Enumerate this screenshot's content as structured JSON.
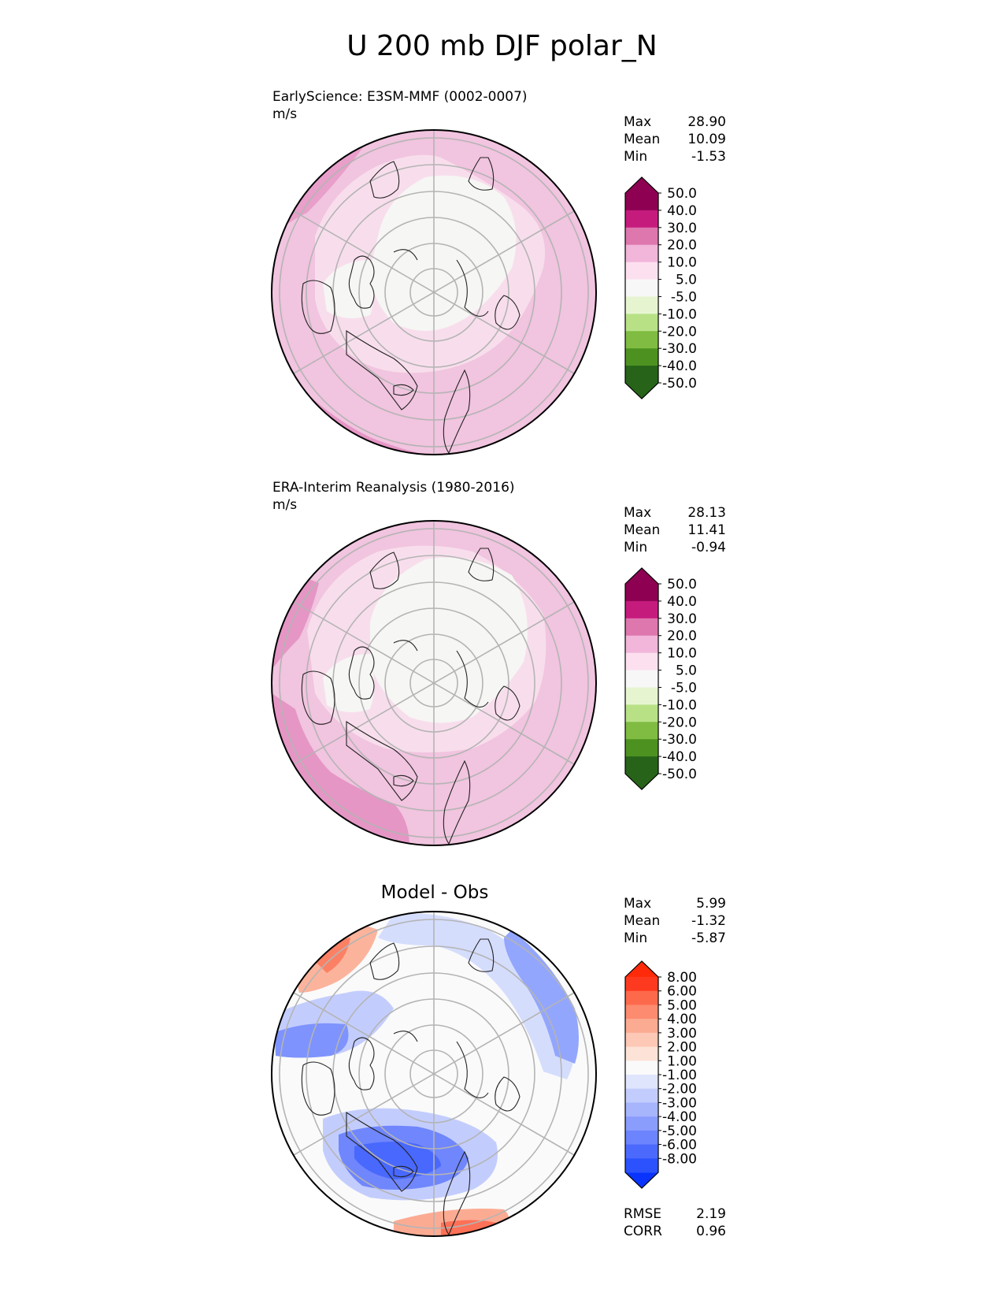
{
  "title": "U 200 mb DJF polar_N",
  "panels": [
    {
      "id": "model",
      "title": "EarlyScience: E3SM-MMF (0002-0007)",
      "units": "m/s",
      "stats": [
        {
          "label": "Max",
          "value": "28.90"
        },
        {
          "label": "Mean",
          "value": "10.09"
        },
        {
          "label": "Min",
          "value": "-1.53"
        }
      ],
      "colorbar": {
        "labels": [
          "50.0",
          "40.0",
          "30.0",
          "20.0",
          "10.0",
          "5.0",
          "-5.0",
          "-10.0",
          "-20.0",
          "-30.0",
          "-40.0",
          "-50.0"
        ],
        "colors": [
          "#8e0152",
          "#c51b7d",
          "#de77ae",
          "#f1b6da",
          "#fde0ef",
          "#f7f7f7",
          "#e6f5d0",
          "#b8e186",
          "#7fbc41",
          "#4d9221",
          "#276419"
        ],
        "top_color": "#8e0152",
        "bottom_color": "#276419"
      }
    },
    {
      "id": "obs",
      "title": "ERA-Interim Reanalysis (1980-2016)",
      "units": "m/s",
      "stats": [
        {
          "label": "Max",
          "value": "28.13"
        },
        {
          "label": "Mean",
          "value": "11.41"
        },
        {
          "label": "Min",
          "value": "-0.94"
        }
      ],
      "colorbar": {
        "labels": [
          "50.0",
          "40.0",
          "30.0",
          "20.0",
          "10.0",
          "5.0",
          "-5.0",
          "-10.0",
          "-20.0",
          "-30.0",
          "-40.0",
          "-50.0"
        ],
        "colors": [
          "#8e0152",
          "#c51b7d",
          "#de77ae",
          "#f1b6da",
          "#fde0ef",
          "#f7f7f7",
          "#e6f5d0",
          "#b8e186",
          "#7fbc41",
          "#4d9221",
          "#276419"
        ],
        "top_color": "#8e0152",
        "bottom_color": "#276419"
      }
    },
    {
      "id": "diff",
      "title": "Model - Obs",
      "stats": [
        {
          "label": "Max",
          "value": "5.99"
        },
        {
          "label": "Mean",
          "value": "-1.32"
        },
        {
          "label": "Min",
          "value": "-5.87"
        }
      ],
      "metrics": [
        {
          "label": "RMSE",
          "value": "2.19"
        },
        {
          "label": "CORR",
          "value": "0.96"
        }
      ],
      "colorbar": {
        "labels": [
          "8.00",
          "6.00",
          "5.00",
          "4.00",
          "3.00",
          "2.00",
          "1.00",
          "-1.00",
          "-2.00",
          "-3.00",
          "-4.00",
          "-5.00",
          "-6.00",
          "-8.00"
        ],
        "colors": [
          "#fd3a1f",
          "#fd6a4b",
          "#fc8b6f",
          "#fcab93",
          "#fdc8b5",
          "#fde2d7",
          "#fafafa",
          "#dfe5fd",
          "#c3cdfd",
          "#a7b5fd",
          "#8a9dfd",
          "#6c84fd",
          "#4b6afd",
          "#2b52fd"
        ],
        "top_color": "#ff2a0a",
        "bottom_color": "#0a34fe"
      }
    }
  ],
  "chart_data": [
    {
      "type": "heatmap",
      "projection": "north polar stereographic",
      "title": "EarlyScience: E3SM-MMF (0002-0007)",
      "units": "m/s",
      "max": 28.9,
      "mean": 10.09,
      "min": -1.53,
      "levels": [
        -50,
        -40,
        -30,
        -20,
        -10,
        -5,
        5,
        10,
        20,
        30,
        40,
        50
      ]
    },
    {
      "type": "heatmap",
      "projection": "north polar stereographic",
      "title": "ERA-Interim Reanalysis (1980-2016)",
      "units": "m/s",
      "max": 28.13,
      "mean": 11.41,
      "min": -0.94,
      "levels": [
        -50,
        -40,
        -30,
        -20,
        -10,
        -5,
        5,
        10,
        20,
        30,
        40,
        50
      ]
    },
    {
      "type": "heatmap",
      "projection": "north polar stereographic",
      "title": "Model - Obs",
      "max": 5.99,
      "mean": -1.32,
      "min": -5.87,
      "rmse": 2.19,
      "corr": 0.96,
      "levels": [
        -8,
        -6,
        -5,
        -4,
        -3,
        -2,
        -1,
        1,
        2,
        3,
        4,
        5,
        6,
        8
      ]
    }
  ]
}
